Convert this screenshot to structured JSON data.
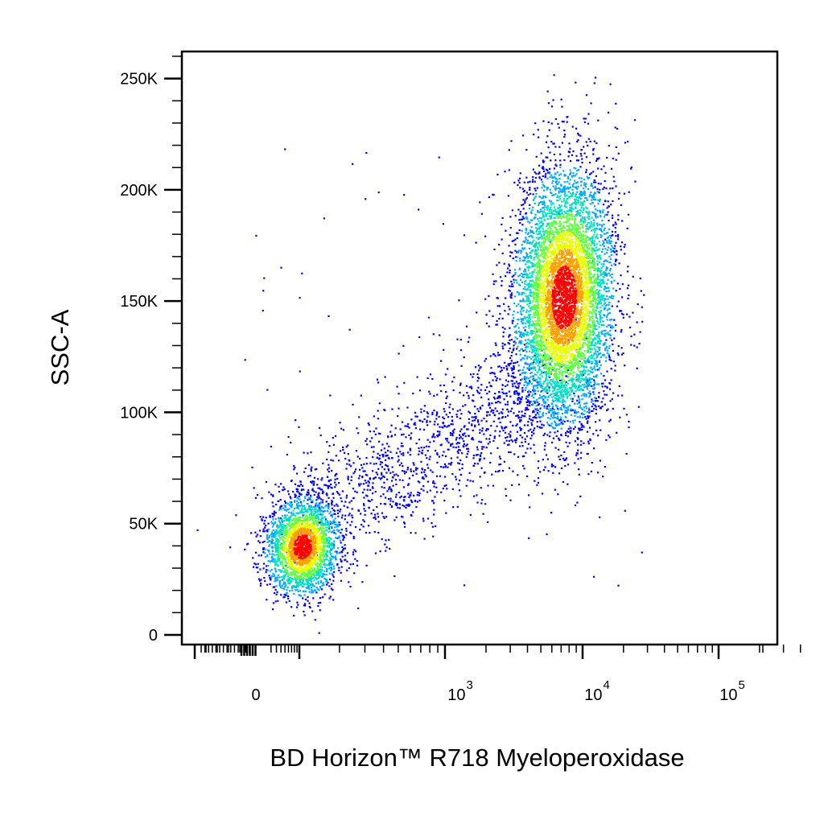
{
  "chart_data": {
    "type": "scatter",
    "style": "density pseudocolor dot plot",
    "xlabel": "BD Horizon™ R718 Myeloperoxidase",
    "ylabel": "SSC-A",
    "x_scale": "biexponential",
    "x_ticks": [
      {
        "value": 0,
        "base": "0",
        "exp": ""
      },
      {
        "value": 1000,
        "base": "10",
        "exp": "3"
      },
      {
        "value": 10000,
        "base": "10",
        "exp": "4"
      },
      {
        "value": 100000,
        "base": "10",
        "exp": "5"
      }
    ],
    "y_ticks": [
      {
        "value": 0,
        "label": "0"
      },
      {
        "value": 50000,
        "label": "50K"
      },
      {
        "value": 100000,
        "label": "100K"
      },
      {
        "value": 150000,
        "label": "150K"
      },
      {
        "value": 200000,
        "label": "200K"
      },
      {
        "value": 250000,
        "label": "250K"
      }
    ],
    "ylim": [
      0,
      262144
    ],
    "grid": false,
    "density_colors": [
      "#0000ff",
      "#00aaff",
      "#00e0c0",
      "#60ff40",
      "#e8ff00",
      "#ffa000",
      "#ff0000"
    ],
    "populations": [
      {
        "x_center": 100,
        "y_center": 40000,
        "x_decades_sd": 0.1,
        "y_sd": 9500
      },
      {
        "x_center": 6000,
        "y_center": 152000,
        "x_decades_sd": 0.1,
        "y_sd": 26000
      },
      {
        "x_center": 700,
        "y_center": 80000,
        "x_decades_sd": 0.25,
        "y_sd": 20000
      }
    ]
  }
}
